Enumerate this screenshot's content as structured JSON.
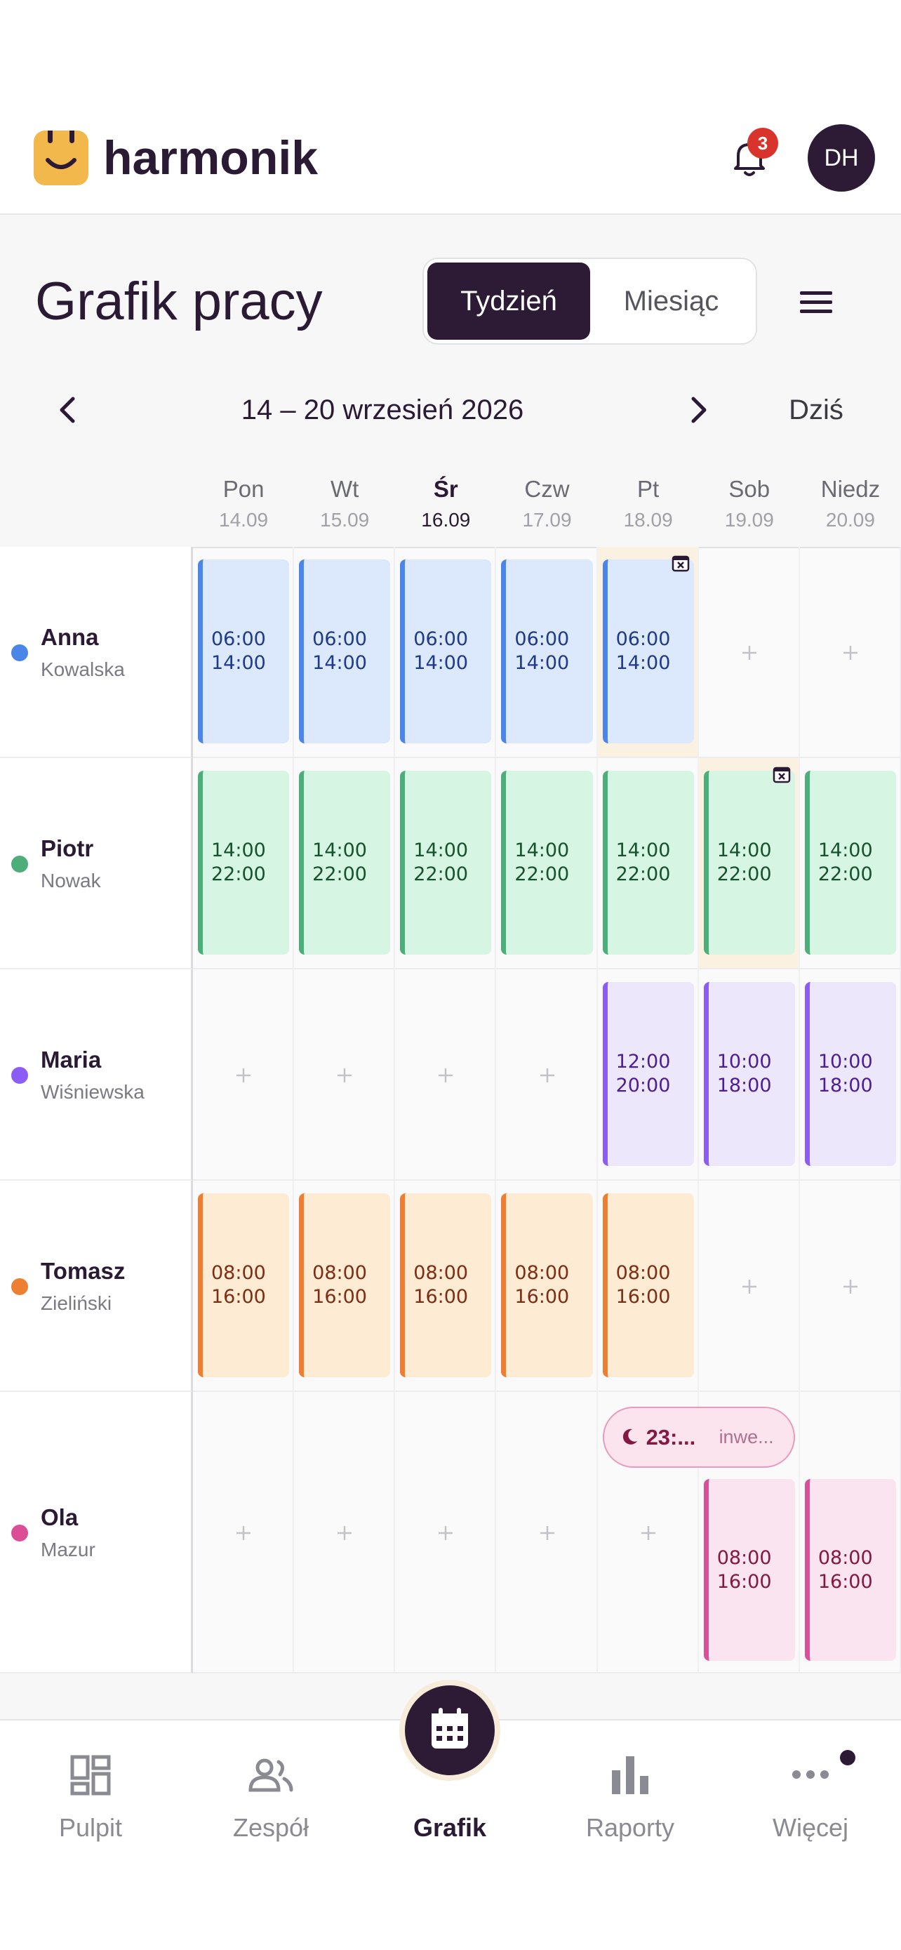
{
  "header": {
    "brand": "harmonik",
    "notifications": "3",
    "avatar": "DH"
  },
  "toolbar": {
    "title": "Grafik pracy",
    "views": [
      "Tydzień",
      "Miesiąc"
    ],
    "active_view": 0
  },
  "week": {
    "range": "14 – 20 wrzesień 2026",
    "today_button": "Dziś",
    "today": 2,
    "days": [
      {
        "name": "Pon",
        "date": "14.09"
      },
      {
        "name": "Wt",
        "date": "15.09"
      },
      {
        "name": "Śr",
        "date": "16.09"
      },
      {
        "name": "Czw",
        "date": "17.09"
      },
      {
        "name": "Pt",
        "date": "18.09"
      },
      {
        "name": "Sob",
        "date": "19.09"
      },
      {
        "name": "Niedz",
        "date": "20.09"
      }
    ]
  },
  "employees": [
    {
      "first": "Anna",
      "last": "Kowalska",
      "color": "#4a86e8",
      "fill": "#dce8fb",
      "text_color": "#1e3a8a",
      "shifts": [
        {
          "start": "06:00",
          "end": "14:00"
        },
        {
          "start": "06:00",
          "end": "14:00"
        },
        {
          "start": "06:00",
          "end": "14:00"
        },
        {
          "start": "06:00",
          "end": "14:00"
        },
        {
          "start": "06:00",
          "end": "14:00",
          "conflict": true
        },
        null,
        null
      ]
    },
    {
      "first": "Piotr",
      "last": "Nowak",
      "color": "#4caf7a",
      "fill": "#d6f5e3",
      "text_color": "#14532d",
      "shifts": [
        {
          "start": "14:00",
          "end": "22:00"
        },
        {
          "start": "14:00",
          "end": "22:00"
        },
        {
          "start": "14:00",
          "end": "22:00"
        },
        {
          "start": "14:00",
          "end": "22:00"
        },
        {
          "start": "14:00",
          "end": "22:00"
        },
        {
          "start": "14:00",
          "end": "22:00",
          "conflict": true
        },
        {
          "start": "14:00",
          "end": "22:00"
        }
      ]
    },
    {
      "first": "Maria",
      "last": "Wiśniewska",
      "color": "#8b5cf6",
      "fill": "#ece7fb",
      "text_color": "#4c1d95",
      "shifts": [
        null,
        null,
        null,
        null,
        {
          "start": "12:00",
          "end": "20:00"
        },
        {
          "start": "10:00",
          "end": "18:00"
        },
        {
          "start": "10:00",
          "end": "18:00"
        }
      ]
    },
    {
      "first": "Tomasz",
      "last": "Zieliński",
      "color": "#ec7f32",
      "fill": "#fdebd4",
      "text_color": "#7c2d12",
      "shifts": [
        {
          "start": "08:00",
          "end": "16:00"
        },
        {
          "start": "08:00",
          "end": "16:00"
        },
        {
          "start": "08:00",
          "end": "16:00"
        },
        {
          "start": "08:00",
          "end": "16:00"
        },
        {
          "start": "08:00",
          "end": "16:00"
        },
        null,
        null
      ]
    },
    {
      "first": "Ola",
      "last": "Mazur",
      "color": "#db4f97",
      "fill": "#f9e4ef",
      "text_color": "#831843",
      "event": {
        "day": 4,
        "time": "23:...",
        "label": "inwe..."
      },
      "shifts": [
        null,
        null,
        null,
        null,
        null,
        {
          "start": "08:00",
          "end": "16:00"
        },
        {
          "start": "08:00",
          "end": "16:00"
        }
      ]
    }
  ],
  "nav": {
    "items": [
      "Pulpit",
      "Zespół",
      "Grafik",
      "Raporty",
      "Więcej"
    ],
    "active": 2
  }
}
